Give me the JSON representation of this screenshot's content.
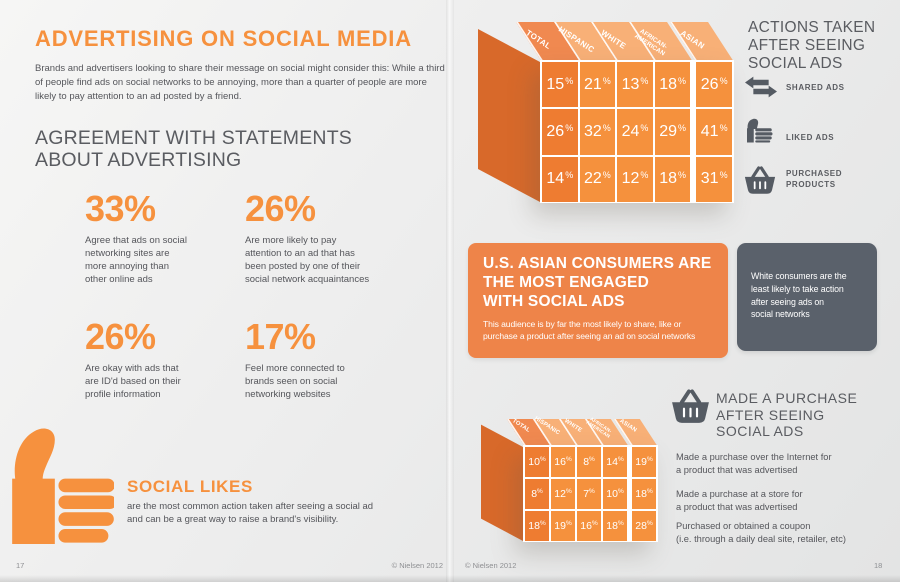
{
  "percent_sign": "%",
  "colors": {
    "accent_orange": "#F6913E",
    "cube_side": "#D8692A",
    "cube_total_column": "#EE7C31",
    "cube_cell": "#F5913D",
    "cube_header": "#F8B077",
    "cube_header_total": "#F08950",
    "asian_box_bg": "#EE8449",
    "white_box_bg": "#5A616B",
    "body_text": "#55565B",
    "heading_gray": "#5A5C61"
  },
  "page_left": {
    "title": "ADVERTISING ON SOCIAL MEDIA",
    "intro": "Brands and advertisers looking to share their message on social might consider this: While a third\nof people find ads on social networks to be annoying, more than a quarter of people are more\nlikely to pay attention to an ad posted by a friend.",
    "agreement": {
      "heading_lines": [
        "AGREEMENT WITH STATEMENTS",
        "ABOUT ADVERTISING"
      ],
      "stats": [
        {
          "value": "33%",
          "desc": "Agree that ads on social\nnetworking sites are\nmore annoying than\nother online ads"
        },
        {
          "value": "26%",
          "desc": "Are more likely to pay\nattention to an ad that has\nbeen posted by one of their\nsocial network acquaintances"
        },
        {
          "value": "26%",
          "desc": "Are okay with ads that\nare ID'd based on their\nprofile information"
        },
        {
          "value": "17%",
          "desc": "Feel more connected to\nbrands seen on social\nnetworking websites"
        }
      ]
    },
    "social_likes": {
      "title": "SOCIAL LIKES",
      "desc": "are the most common action taken after seeing a social ad\nand can be a great way to raise a brand's visibility."
    },
    "footer": {
      "page": "17",
      "copyright": "© Nielsen 2012"
    }
  },
  "page_right": {
    "legend": {
      "title_lines": [
        "ACTIONS TAKEN",
        "AFTER SEEING",
        "SOCIAL ADS"
      ],
      "items": [
        {
          "icon": "share-arrows-icon",
          "label": "SHARED ADS"
        },
        {
          "icon": "thumbs-up-icon",
          "label": "LIKED ADS"
        },
        {
          "icon": "shopping-basket-icon",
          "label": "PURCHASED\nPRODUCTS"
        }
      ]
    },
    "asian_box": {
      "title_lines": [
        "U.S. ASIAN CONSUMERS ARE",
        "THE MOST ENGAGED",
        "WITH SOCIAL ADS"
      ],
      "body": "This audience is by far the most likely to share, like or\npurchase a product after seeing an ad on social networks"
    },
    "white_box": {
      "text": "White consumers are the\nleast likely to take action\nafter seeing ads on\nsocial networks"
    },
    "purchase": {
      "title_lines": [
        "MADE A PURCHASE",
        "AFTER SEEING",
        "SOCIAL ADS"
      ],
      "rows": [
        "Made a purchase over the Internet for\na product that was advertised",
        "Made a purchase at a store for\na product that was advertised",
        "Purchased or obtained a coupon\n(i.e. through a daily deal site, retailer, etc)"
      ]
    },
    "footer": {
      "copyright": "© Nielsen 2012",
      "page": "18"
    }
  },
  "chart_data": [
    {
      "type": "table",
      "title": "ACTIONS TAKEN AFTER SEEING SOCIAL ADS",
      "unit": "%",
      "categories": [
        "TOTAL",
        "HISPANIC",
        "WHITE",
        "AFRICAN-\nAMERICAN",
        "ASIAN"
      ],
      "series": [
        {
          "name": "SHARED ADS",
          "values": [
            15,
            21,
            13,
            18,
            26
          ]
        },
        {
          "name": "LIKED ADS",
          "values": [
            26,
            32,
            24,
            29,
            41
          ]
        },
        {
          "name": "PURCHASED PRODUCTS",
          "values": [
            14,
            22,
            12,
            18,
            31
          ]
        }
      ]
    },
    {
      "type": "table",
      "title": "MADE A PURCHASE AFTER SEEING SOCIAL ADS",
      "unit": "%",
      "categories": [
        "TOTAL",
        "HISPANIC",
        "WHITE",
        "AFRICAN-\nAMERICAN",
        "ASIAN"
      ],
      "series": [
        {
          "name": "Made a purchase over the Internet for a product that was advertised",
          "values": [
            10,
            16,
            8,
            14,
            19
          ]
        },
        {
          "name": "Made a purchase at a store for a product that was advertised",
          "values": [
            8,
            12,
            7,
            10,
            18
          ]
        },
        {
          "name": "Purchased or obtained a coupon (i.e. through a daily deal site, retailer, etc)",
          "values": [
            18,
            19,
            16,
            18,
            28
          ]
        }
      ]
    }
  ]
}
